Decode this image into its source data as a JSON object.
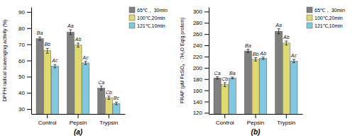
{
  "chart_data": [
    {
      "type": "bar",
      "title": "(a)",
      "y_label": "DPPH radical scavenging activity (%)",
      "categories": [
        "Control",
        "Pepsin",
        "Trypsin"
      ],
      "series": [
        {
          "name": "65℃， 30min",
          "color": "#7f7f7f",
          "values": [
            73.5,
            77.5,
            43.0
          ],
          "errors": [
            1.0,
            1.5,
            1.2
          ],
          "annotations": [
            "Ba",
            "Aa",
            "Ca"
          ]
        },
        {
          "name": "100℃,20min",
          "color": "#e0d870",
          "values": [
            66.0,
            69.5,
            37.0
          ],
          "errors": [
            1.5,
            1.2,
            1.0
          ],
          "annotations": [
            "Bb",
            "Ab",
            "Cb"
          ]
        },
        {
          "name": "121℃,10min",
          "color": "#80c8e0",
          "values": [
            56.5,
            58.5,
            33.5
          ],
          "errors": [
            1.0,
            1.0,
            0.8
          ],
          "annotations": [
            "Ac",
            "Ac",
            "Bc"
          ]
        }
      ],
      "ylim": [
        27,
        93
      ],
      "yticks": [
        30,
        40,
        50,
        60,
        70,
        80,
        90
      ],
      "grid": false,
      "legend": "upper right"
    },
    {
      "type": "bar",
      "title": "(b)",
      "y_label": "FRAP (μM FeSO₄ · 7H₂O Eq/g protein)",
      "categories": [
        "Control",
        "Pepsin",
        "Trypsin"
      ],
      "series": [
        {
          "name": "65℃， 30min",
          "color": "#7f7f7f",
          "values": [
            182.0,
            230.0,
            265.0
          ],
          "errors": [
            2.0,
            3.0,
            4.5
          ],
          "annotations": [
            "Ca",
            "Ba",
            "Aa"
          ]
        },
        {
          "name": "100℃,20min",
          "color": "#e0d870",
          "values": [
            170.0,
            215.0,
            244.0
          ],
          "errors": [
            3.5,
            3.0,
            3.5
          ],
          "annotations": [
            "Cb",
            "Bb",
            "Ab"
          ]
        },
        {
          "name": "121℃,10min",
          "color": "#80c8e0",
          "values": [
            182.0,
            217.0,
            212.0
          ],
          "errors": [
            1.5,
            2.0,
            3.0
          ],
          "annotations": [
            "Ba",
            "Ab",
            "Ac"
          ]
        }
      ],
      "ylim": [
        118,
        308
      ],
      "yticks": [
        120,
        140,
        160,
        180,
        200,
        220,
        240,
        260,
        280,
        300
      ],
      "grid": false,
      "legend": "upper right"
    }
  ]
}
